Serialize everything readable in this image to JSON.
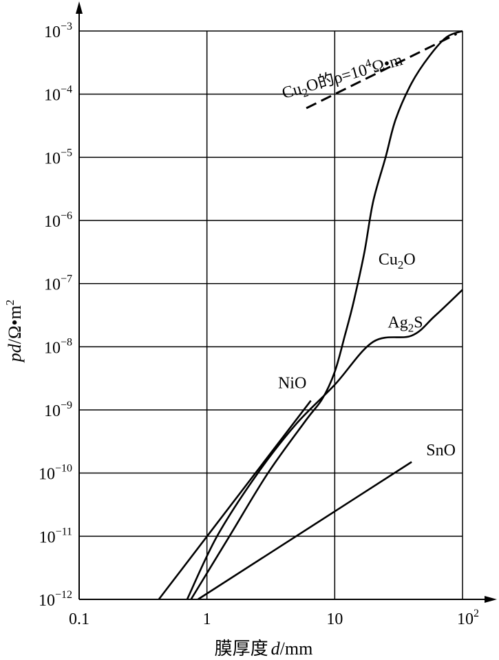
{
  "chart_data": {
    "type": "line",
    "x_scale": "log",
    "y_scale": "log",
    "xlim": [
      0.1,
      100
    ],
    "ylim": [
      1e-12,
      0.001
    ],
    "grid": true,
    "xlabel": {
      "prefix": "膜厚度",
      "var": "d",
      "unit": "/mm"
    },
    "ylabel": {
      "var": "pd",
      "unit": "/Ω•m",
      "exp": "2"
    },
    "x_ticks": [
      {
        "value": 0.1,
        "base": "0.1",
        "exp": ""
      },
      {
        "value": 1,
        "base": "1",
        "exp": ""
      },
      {
        "value": 10,
        "base": "10",
        "exp": ""
      },
      {
        "value": 100,
        "base": "10",
        "exp": "2"
      }
    ],
    "y_ticks": [
      {
        "value": 0.001,
        "base": "10",
        "exp": "−3"
      },
      {
        "value": 0.0001,
        "base": "10",
        "exp": "−4"
      },
      {
        "value": 1e-05,
        "base": "10",
        "exp": "−5"
      },
      {
        "value": 1e-06,
        "base": "10",
        "exp": "−6"
      },
      {
        "value": 1e-07,
        "base": "10",
        "exp": "−7"
      },
      {
        "value": 1e-08,
        "base": "10",
        "exp": "−8"
      },
      {
        "value": 1e-09,
        "base": "10",
        "exp": "−9"
      },
      {
        "value": 1e-10,
        "base": "10",
        "exp": "−10"
      },
      {
        "value": 1e-11,
        "base": "10",
        "exp": "−11"
      },
      {
        "value": 1e-12,
        "base": "10",
        "exp": "−12"
      }
    ],
    "series": [
      {
        "name": "Cu2O",
        "dashed": false,
        "smooth": true,
        "label": {
          "base": "Cu",
          "sub": "2",
          "rest": "O",
          "at": [
            22,
            2e-07
          ]
        },
        "points": [
          [
            0.75,
            1e-12
          ],
          [
            1.5,
            1e-11
          ],
          [
            3,
            1e-10
          ],
          [
            6,
            7e-10
          ],
          [
            8,
            1.5e-09
          ],
          [
            10,
            4e-09
          ],
          [
            12,
            1.5e-08
          ],
          [
            14,
            5e-08
          ],
          [
            17,
            3e-07
          ],
          [
            20,
            2e-06
          ],
          [
            25,
            1e-05
          ],
          [
            30,
            4e-05
          ],
          [
            40,
            0.00015
          ],
          [
            55,
            0.0004
          ],
          [
            75,
            0.0008
          ],
          [
            100,
            0.001
          ]
        ]
      },
      {
        "name": "Ag2S",
        "dashed": false,
        "smooth": true,
        "label": {
          "base": "Ag",
          "sub": "2",
          "rest": "S",
          "at": [
            26,
            2e-08
          ]
        },
        "points": [
          [
            0.7,
            1e-12
          ],
          [
            1.2,
            1e-11
          ],
          [
            2.5,
            1e-10
          ],
          [
            5,
            6e-10
          ],
          [
            10,
            2.5e-09
          ],
          [
            20,
            1.2e-08
          ],
          [
            40,
            1.5e-08
          ],
          [
            60,
            3e-08
          ],
          [
            100,
            8e-08
          ]
        ]
      },
      {
        "name": "NiO",
        "dashed": false,
        "smooth": false,
        "label": {
          "base": "NiO",
          "sub": "",
          "rest": "",
          "at": [
            3.6,
            2.2e-09
          ]
        },
        "points": [
          [
            0.42,
            1e-12
          ],
          [
            6.5,
            1.4e-09
          ]
        ]
      },
      {
        "name": "SnO",
        "dashed": false,
        "smooth": false,
        "label": {
          "base": "SnO",
          "sub": "",
          "rest": "",
          "at": [
            52,
            1.9e-10
          ]
        },
        "points": [
          [
            0.85,
            1e-12
          ],
          [
            40,
            1.5e-10
          ]
        ]
      },
      {
        "name": "Cu2O ρ=10^4 Ω·m",
        "dashed": true,
        "smooth": false,
        "label": {
          "base": "Cu",
          "sub": "2",
          "rest": "O的ρ=10",
          "sup": "4",
          "tail": "Ω•m",
          "at": [
            4.0,
            8.5e-05
          ],
          "angle": -16
        },
        "points": [
          [
            6,
            6e-05
          ],
          [
            90,
            0.0009
          ]
        ]
      }
    ]
  }
}
